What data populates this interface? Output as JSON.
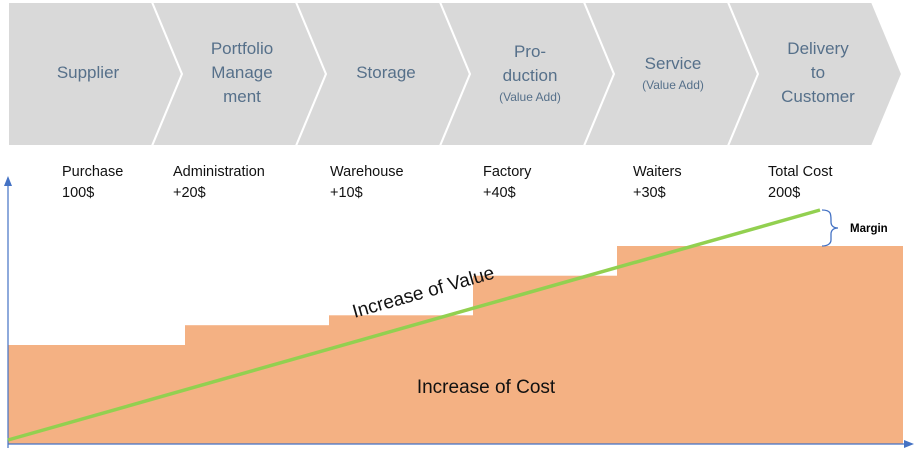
{
  "stages": [
    {
      "lines": [
        "Supplier"
      ],
      "sub": ""
    },
    {
      "lines": [
        "Portfolio",
        "Manage",
        "ment"
      ],
      "sub": ""
    },
    {
      "lines": [
        "Storage"
      ],
      "sub": ""
    },
    {
      "lines": [
        "Pro-",
        "duction"
      ],
      "sub": "(Value Add)"
    },
    {
      "lines": [
        "Service"
      ],
      "sub": "(Value Add)"
    },
    {
      "lines": [
        "Delivery",
        "to",
        "Customer"
      ],
      "sub": ""
    }
  ],
  "cost_items": [
    {
      "label": "Purchase",
      "amount": "100$"
    },
    {
      "label": "Administration",
      "amount": "+20$"
    },
    {
      "label": "Warehouse",
      "amount": "+10$"
    },
    {
      "label": "Factory",
      "amount": "+40$"
    },
    {
      "label": "Waiters",
      "amount": "+30$"
    },
    {
      "label": "Total Cost",
      "amount": "200$"
    }
  ],
  "chart_data": {
    "type": "area",
    "categories": [
      "Supplier",
      "Portfolio Management",
      "Storage",
      "Production",
      "Service"
    ],
    "cost_cumulative": [
      100,
      120,
      130,
      170,
      200
    ],
    "cost_label": "Increase of Cost",
    "value_label": "Increase of Value",
    "margin_label": "Margin"
  },
  "colors": {
    "chevron_fill": "#d9d9d9",
    "chevron_stroke": "#ffffff",
    "stage_text": "#56708a",
    "cost_fill": "#f4b183",
    "value_line": "#92d050",
    "axis": "#4472c4"
  }
}
